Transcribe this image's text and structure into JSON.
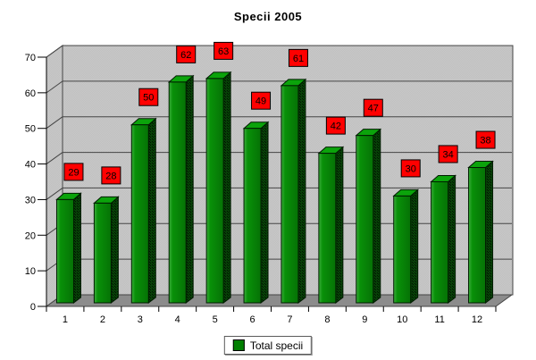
{
  "title": "Specii 2005",
  "legend": {
    "label": "Total specii"
  },
  "chart_data": {
    "type": "bar",
    "projection": "3d",
    "title": "Specii 2005",
    "categories": [
      "1",
      "2",
      "3",
      "4",
      "5",
      "6",
      "7",
      "8",
      "9",
      "10",
      "11",
      "12"
    ],
    "series": [
      {
        "name": "Total specii",
        "values": [
          29,
          28,
          50,
          62,
          63,
          49,
          61,
          42,
          47,
          30,
          34,
          38
        ]
      }
    ],
    "data_labels": [
      29,
      28,
      50,
      62,
      63,
      49,
      61,
      42,
      47,
      30,
      34,
      38
    ],
    "xlabel": "",
    "ylabel": "",
    "ylim": [
      0,
      70
    ],
    "yticks": [
      0,
      10,
      20,
      30,
      40,
      50,
      60,
      70
    ],
    "grid": true,
    "legend_position": "bottom",
    "colors": {
      "bar_front": "#089008",
      "bar_front_highlight": "#3CAE3C",
      "bar_front_shade": "#067206",
      "bar_top": "#0BA30B",
      "bar_side": "#074007",
      "bar_side_dot": "#001300",
      "bar_outline": "#001C00",
      "data_label_bg": "#FF0000",
      "data_label_border": "#000000",
      "data_label_text": "#000000",
      "legend_swatch": "#008000",
      "wall": "#C8C8C8",
      "wall_dither": "#C0C0C0",
      "floor": "#8C8C8C",
      "gridline": "#454545",
      "axis_line": "#000000",
      "axis_text": "#000000",
      "background": "#FFFFFF"
    }
  }
}
